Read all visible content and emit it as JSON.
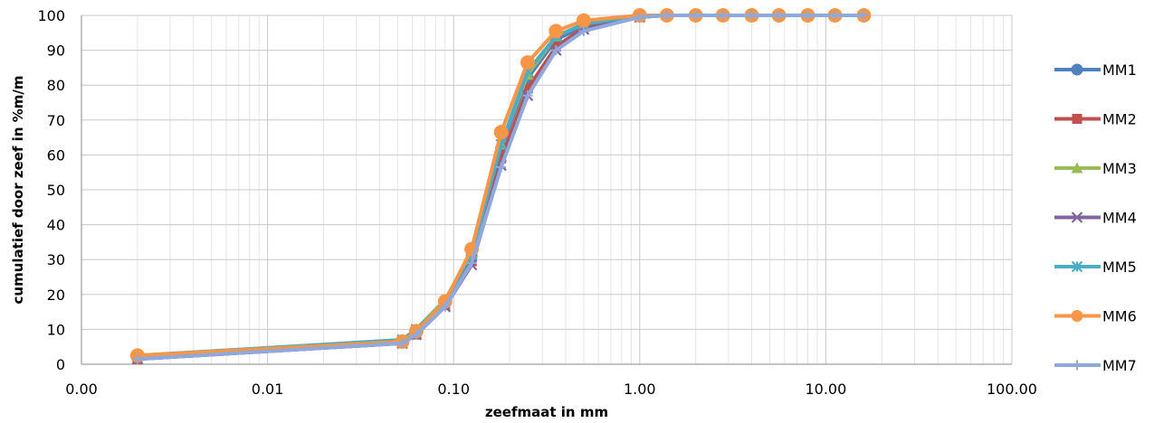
{
  "chart_data": {
    "type": "line",
    "title": "",
    "xlabel": "zeefmaat in mm",
    "ylabel": "cumulatief door zeef  in %m/m",
    "x_scale": "log",
    "xlim": [
      0.001,
      100
    ],
    "ylim": [
      0,
      100
    ],
    "x_ticks": [
      "0.00",
      "0.01",
      "0.10",
      "1.00",
      "10.00",
      "100.00"
    ],
    "y_ticks": [
      "0",
      "10",
      "20",
      "30",
      "40",
      "50",
      "60",
      "70",
      "80",
      "90",
      "100"
    ],
    "grid": "major and minor",
    "legend_position": "right",
    "x": [
      0.002,
      0.053,
      0.063,
      0.09,
      0.125,
      0.18,
      0.25,
      0.355,
      0.5,
      1.0,
      1.4,
      2.0,
      2.8,
      4.0,
      5.6,
      8.0,
      11.2,
      16.0
    ],
    "series": [
      {
        "name": "MM1",
        "color": "#4F81BD",
        "marker": "circle",
        "values": [
          2,
          6.5,
          9,
          17.5,
          31,
          62,
          82,
          93,
          97,
          100,
          100,
          100,
          100,
          100,
          100,
          100,
          100,
          100
        ]
      },
      {
        "name": "MM2",
        "color": "#C0504D",
        "marker": "square",
        "values": [
          1.5,
          6,
          8.5,
          17,
          29.5,
          59,
          79,
          91,
          96.5,
          99.5,
          100,
          100,
          100,
          100,
          100,
          100,
          100,
          100
        ]
      },
      {
        "name": "MM3",
        "color": "#9BBB59",
        "marker": "triangle",
        "values": [
          2.5,
          7,
          10,
          18.5,
          32,
          63,
          83,
          94,
          97.5,
          100,
          100,
          100,
          100,
          100,
          100,
          100,
          100,
          100
        ]
      },
      {
        "name": "MM4",
        "color": "#8064A2",
        "marker": "x",
        "values": [
          1.5,
          6,
          8.5,
          16.5,
          28.5,
          57,
          77,
          90,
          96,
          99.5,
          100,
          100,
          100,
          100,
          100,
          100,
          100,
          100
        ]
      },
      {
        "name": "MM5",
        "color": "#4BACC6",
        "marker": "star",
        "values": [
          2.5,
          7,
          10,
          18,
          31.5,
          63,
          84,
          94,
          97.5,
          100,
          100,
          100,
          100,
          100,
          100,
          100,
          100,
          100
        ]
      },
      {
        "name": "MM6",
        "color": "#F79646",
        "marker": "circle",
        "values": [
          2.5,
          6.5,
          9.5,
          18,
          33,
          66.5,
          86.5,
          95.5,
          98.5,
          100,
          100,
          100,
          100,
          100,
          100,
          100,
          100,
          100
        ]
      },
      {
        "name": "MM7",
        "color": "#8EA9DB",
        "marker": "plus",
        "values": [
          1.5,
          6,
          8.5,
          16.5,
          29,
          56.5,
          77,
          90,
          95.5,
          99.5,
          100,
          100,
          100,
          100,
          100,
          100,
          100,
          100
        ]
      }
    ]
  }
}
